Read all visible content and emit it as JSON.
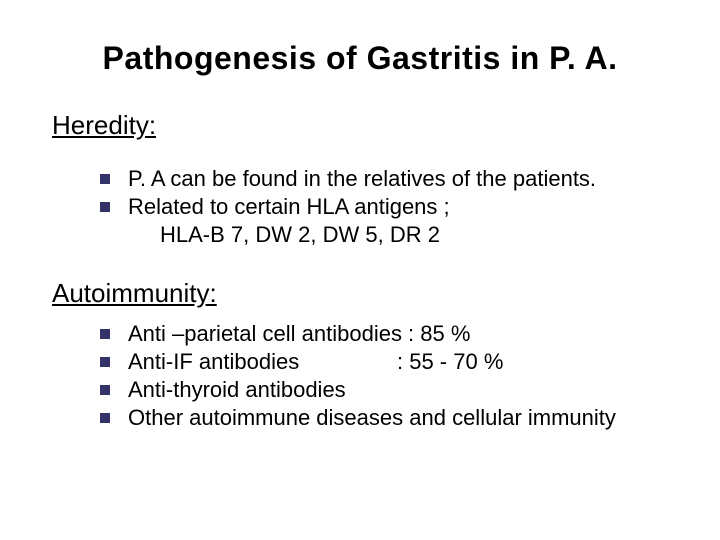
{
  "title": "Pathogenesis of Gastritis in P. A.",
  "sections": {
    "heredity": {
      "label": "Heredity:",
      "items": [
        {
          "text": "P. A  can be found in the relatives of the patients."
        },
        {
          "text": "Related to certain HLA antigens ;",
          "sub": "HLA-B 7, DW 2, DW 5, DR 2"
        }
      ]
    },
    "autoimmunity": {
      "label": "Autoimmunity:",
      "items": [
        {
          "text": "Anti –parietal cell antibodies : 85 %"
        },
        {
          "text": "Anti-IF antibodies                : 55 - 70 %"
        },
        {
          "text": "Anti-thyroid antibodies"
        },
        {
          "text": "Other autoimmune diseases and cellular immunity"
        }
      ]
    }
  },
  "style": {
    "background_color": "#ffffff",
    "title_color": "#000000",
    "title_fontsize": 32,
    "title_weight": "bold",
    "section_fontsize": 26,
    "section_underline": true,
    "body_fontsize": 22,
    "body_lineheight": 28,
    "text_color": "#000000",
    "bullet_color": "#333368",
    "bullet_size": 10,
    "bullet_shape": "square",
    "font_family": "Arial",
    "slide_width": 720,
    "slide_height": 540
  }
}
